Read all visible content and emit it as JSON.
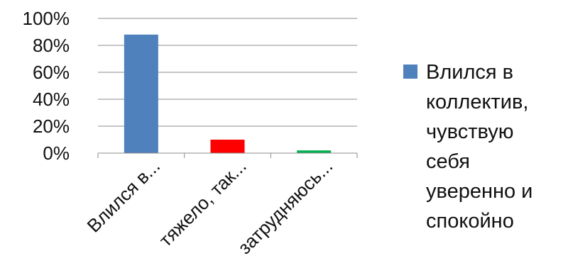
{
  "chart_data": {
    "type": "bar",
    "categories": [
      "Влился в...",
      "тяжело, так...",
      "затрудняюсь..."
    ],
    "series": [
      {
        "name": "Влился в коллектив, чувствую себя уверенно и спокойно",
        "values": [
          88,
          10,
          2
        ],
        "colors": [
          "#4f81bd",
          "#ff0000",
          "#00b050"
        ]
      }
    ],
    "y_tick_labels": [
      "0%",
      "20%",
      "40%",
      "60%",
      "80%",
      "100%"
    ],
    "ylim": [
      0,
      100
    ],
    "grid": true,
    "legend": {
      "position": "right",
      "color": "#4f81bd",
      "lines": [
        "Влился в",
        "коллектив,",
        "чувствую",
        "себя",
        "уверенно и",
        "спокойно"
      ]
    }
  }
}
